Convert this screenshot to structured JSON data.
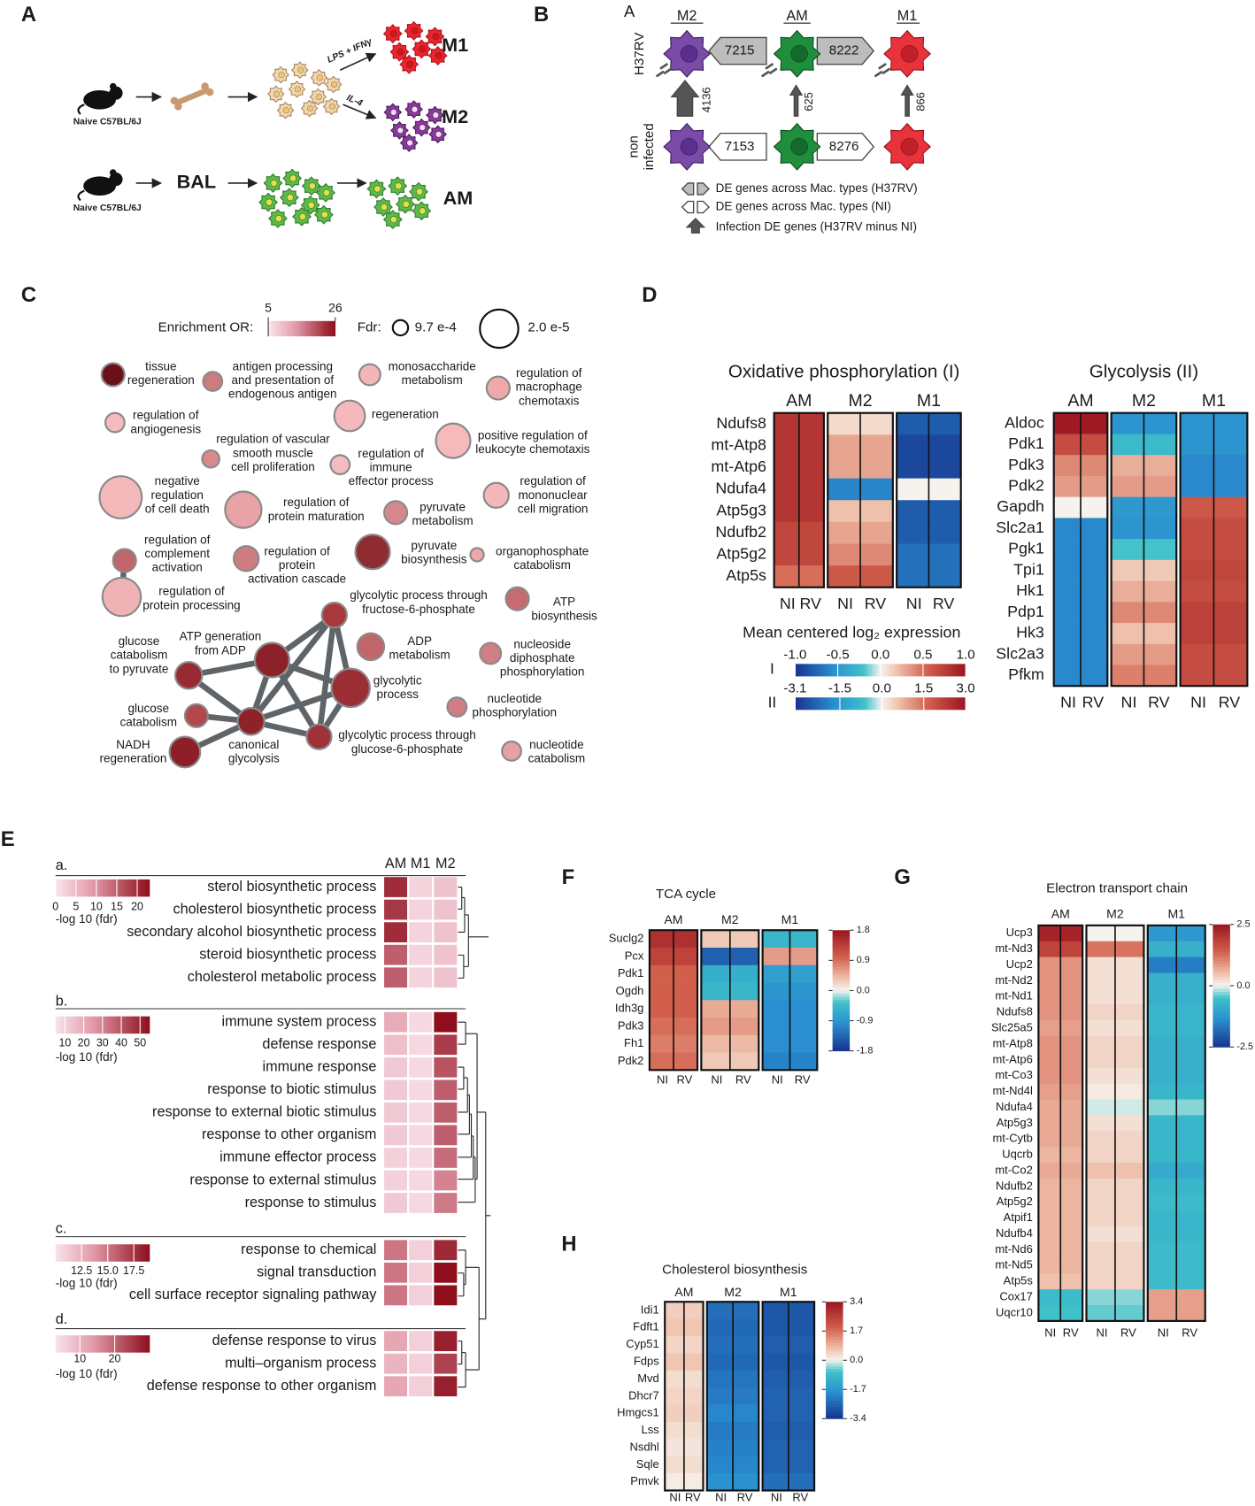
{
  "letters": [
    "A",
    "B",
    "C",
    "D",
    "E",
    "F",
    "G",
    "H"
  ],
  "panel_a": {
    "mouse_label": "Naive C57BL/6J",
    "stim_m1": "LPS + IFNγ",
    "stim_m2": "IL-4",
    "m1": "M1",
    "m2": "M2",
    "bal": "BAL",
    "am": "AM"
  },
  "panel_b": {
    "sub_label": "A",
    "columns": [
      "M2",
      "AM",
      "M1"
    ],
    "rows": [
      [
        "H37RV"
      ],
      [
        "non",
        "infected"
      ]
    ],
    "across_h37rv": [
      7215,
      8222
    ],
    "across_ni": [
      7153,
      8276
    ],
    "infection": [
      4136,
      625,
      866
    ],
    "legend": [
      "DE genes across Mac. types (H37RV)",
      "DE genes across Mac. types (NI)",
      "Infection DE genes (H37RV minus NI)"
    ]
  },
  "panel_c": {
    "or_label": "Enrichment OR:",
    "or_lim": [
      5,
      26
    ],
    "or_ticks": [
      5,
      26
    ],
    "fdr_label": "Fdr:",
    "fdr_small": "9.7 e-4",
    "fdr_large": "2.0 e-5",
    "nodes": [
      {
        "label": [
          "tissue",
          "regeneration"
        ],
        "color": "#6b0f18"
      },
      {
        "label": [
          "antigen processing",
          "and presentation of",
          "endogenous antigen"
        ],
        "color": "#cc7b80"
      },
      {
        "label": [
          "monosaccharide",
          "metabolism"
        ],
        "color": "#f3b6b8"
      },
      {
        "label": [
          "regulation of",
          "macrophage",
          "chemotaxis"
        ],
        "color": "#efa9ab"
      },
      {
        "label": [
          "regulation of",
          "angiogenesis"
        ],
        "color": "#f4bcbe"
      },
      {
        "label": [
          "regeneration"
        ],
        "color": "#f5b9bb"
      },
      {
        "label": [
          "regulation of vascular",
          "smooth muscle",
          "cell proliferation"
        ],
        "color": "#d8898d"
      },
      {
        "label": [
          "regulation of",
          "immune",
          "effector process"
        ],
        "color": "#f4bcbe"
      },
      {
        "label": [
          "positive regulation of",
          "leukocyte chemotaxis"
        ],
        "color": "#f6babc"
      },
      {
        "label": [
          "negative",
          "regulation",
          "of cell death"
        ],
        "color": "#f6b9bb"
      },
      {
        "label": [
          "regulation of",
          "protein maturation"
        ],
        "color": "#e9a2a5"
      },
      {
        "label": [
          "pyruvate",
          "metabolism"
        ],
        "color": "#d6878b"
      },
      {
        "label": [
          "regulation of",
          "mononuclear",
          "cell migration"
        ],
        "color": "#f4b8ba"
      },
      {
        "label": [
          "regulation of",
          "complement",
          "activation"
        ],
        "color": "#c0666b"
      },
      {
        "label": [
          "regulation of",
          "protein",
          "activation cascade"
        ],
        "color": "#cf7c80"
      },
      {
        "label": [
          "pyruvate",
          "biosynthesis"
        ],
        "color": "#8f2c32"
      },
      {
        "label": [
          "organophosphate",
          "catabolism"
        ],
        "color": "#f0a6a8"
      },
      {
        "label": [
          "regulation of",
          "protein processing"
        ],
        "color": "#f0b3b5"
      },
      {
        "label": [
          "glycolytic process through",
          "fructose-6-phosphate"
        ],
        "color": "#a9383e"
      },
      {
        "label": [
          "ATP",
          "biosynthesis"
        ],
        "color": "#c46c71"
      },
      {
        "label": [
          "glucose",
          "catabolism",
          "to pyruvate"
        ],
        "color": "#9a2a31"
      },
      {
        "label": [
          "ATP generation",
          "from ADP"
        ],
        "color": "#8d2129"
      },
      {
        "label": [
          "ADP",
          "metabolism"
        ],
        "color": "#c1676c"
      },
      {
        "label": [
          "nucleoside",
          "diphosphate",
          "phosphorylation"
        ],
        "color": "#d17f84"
      },
      {
        "label": [
          "glycolytic",
          "process"
        ],
        "color": "#9b2d34"
      },
      {
        "label": [
          "glucose",
          "catabolism"
        ],
        "color": "#b0484e"
      },
      {
        "label": [
          "nucleotide",
          "phosphorylation"
        ],
        "color": "#d07e83"
      },
      {
        "label": [
          "canonical",
          "glycolysis"
        ],
        "color": "#8f2229"
      },
      {
        "label": [
          "glycolytic process through",
          "glucose-6-phosphate"
        ],
        "color": "#9f3239"
      },
      {
        "label": [
          "NADH",
          "regeneration"
        ],
        "color": "#8e1e27"
      },
      {
        "label": [
          "nucleotide",
          "catabolism"
        ],
        "color": "#e5a1a4"
      }
    ]
  },
  "panel_d": {
    "legend_title": "Mean centered log₂ expression",
    "scales": [
      {
        "name": "I",
        "lim": [
          -1,
          1
        ],
        "ticks": [
          {
            "value": -1,
            "label": "-1.0"
          },
          -0.5,
          {
            "value": 0,
            "label": "0.0"
          },
          0.5,
          {
            "value": 1,
            "label": "1.0"
          }
        ]
      },
      {
        "name": "II",
        "lim": [
          -3.1,
          3
        ],
        "ticks": [
          -3.1,
          -1.5,
          {
            "value": 0,
            "label": "0.0"
          },
          1.5,
          {
            "value": 3,
            "label": "3.0"
          }
        ]
      }
    ],
    "heatmaps": [
      {
        "title": "Oxidative phosphorylation (I)",
        "groups": [
          "AM",
          "M2",
          "M1"
        ],
        "columns": [
          "NI",
          "RV"
        ],
        "genes": [
          "Ndufs8",
          "mt-Atp8",
          "mt-Atp6",
          "Ndufa4",
          "Atp5g3",
          "Ndufb2",
          "Atp5g2",
          "Atp5s"
        ],
        "values": [
          [
            0.8,
            0.1,
            -0.8
          ],
          [
            0.8,
            0.3,
            -0.9
          ],
          [
            0.8,
            0.3,
            -0.9
          ],
          [
            0.8,
            -0.6,
            0.0
          ],
          [
            0.8,
            0.2,
            -0.8
          ],
          [
            0.7,
            0.3,
            -0.8
          ],
          [
            0.7,
            0.4,
            -0.7
          ],
          [
            0.5,
            0.6,
            -0.7
          ]
        ]
      },
      {
        "title": "Glycolysis (II)",
        "groups": [
          "AM",
          "M2",
          "M1"
        ],
        "columns": [
          "NI",
          "RV"
        ],
        "genes": [
          "Aldoc",
          "Pdk1",
          "Pdk3",
          "Pdk2",
          "Gapdh",
          "Slc2a1",
          "Pgk1",
          "Tpi1",
          "Hk1",
          "Pdp1",
          "Hk3",
          "Slc2a3",
          "Pfkm"
        ],
        "values": [
          [
            2.9,
            -1.6,
            -1.6
          ],
          [
            2.0,
            -0.8,
            -1.6
          ],
          [
            1.2,
            0.8,
            -1.8
          ],
          [
            1.0,
            1.0,
            -1.8
          ],
          [
            0.0,
            -1.5,
            1.8
          ],
          [
            -1.8,
            -1.6,
            2.0
          ],
          [
            -1.8,
            -0.6,
            2.0
          ],
          [
            -1.8,
            0.5,
            2.1
          ],
          [
            -1.8,
            0.8,
            2.0
          ],
          [
            -1.8,
            1.2,
            2.2
          ],
          [
            -1.8,
            0.6,
            2.2
          ],
          [
            -1.8,
            1.0,
            2.0
          ],
          [
            -1.8,
            1.3,
            2.0
          ]
        ]
      }
    ]
  },
  "panel_e": {
    "columns": [
      "AM",
      "M1",
      "M2"
    ],
    "sections": [
      {
        "letter": "a.",
        "legend_label": "-log 10 (fdr)",
        "lim": [
          0,
          23
        ],
        "ticks": [
          0,
          5,
          10,
          15,
          20
        ],
        "terms": [
          "sterol biosynthetic process",
          "cholesterol biosynthetic process",
          "secondary alcohol biosynthetic process",
          "steroid biosynthetic process",
          "cholesterol metabolic process"
        ],
        "values": [
          [
            20,
            2,
            4
          ],
          [
            19,
            2,
            4
          ],
          [
            20,
            2,
            4
          ],
          [
            15,
            2,
            4
          ],
          [
            15,
            2,
            4
          ]
        ]
      },
      {
        "letter": "b.",
        "legend_label": "-log 10 (fdr)",
        "lim": [
          5,
          55
        ],
        "ticks": [
          10,
          20,
          30,
          40,
          50
        ],
        "terms": [
          "immune system process",
          "defense response",
          "immune response",
          "response to biotic stimulus",
          "response to external biotic stimulus",
          "response to other organism",
          "immune effector process",
          "response to external stimulus",
          "response to stimulus"
        ],
        "values": [
          [
            20,
            8,
            55
          ],
          [
            15,
            8,
            45
          ],
          [
            12,
            8,
            40
          ],
          [
            12,
            8,
            38
          ],
          [
            12,
            8,
            38
          ],
          [
            12,
            8,
            38
          ],
          [
            10,
            8,
            35
          ],
          [
            10,
            8,
            30
          ],
          [
            12,
            8,
            32
          ]
        ]
      },
      {
        "letter": "c.",
        "legend_label": "-log 10 (fdr)",
        "lim": [
          10,
          19
        ],
        "ticks": [
          12.5,
          {
            "value": 15,
            "label": "15.0"
          },
          17.5
        ],
        "terms": [
          "response to chemical",
          "signal transduction",
          "cell surface receptor signaling pathway"
        ],
        "values": [
          [
            15,
            11,
            18
          ],
          [
            15,
            11,
            19
          ],
          [
            15,
            11,
            19
          ]
        ]
      },
      {
        "letter": "d.",
        "legend_label": "-log 10 (fdr)",
        "lim": [
          3,
          30
        ],
        "ticks": [
          10,
          20
        ],
        "terms": [
          "defense response to virus",
          "multi–organism process",
          "defense response to other organism"
        ],
        "values": [
          [
            12,
            6,
            28
          ],
          [
            10,
            6,
            24
          ],
          [
            12,
            6,
            28
          ]
        ]
      }
    ]
  },
  "panel_f": {
    "title": "TCA cycle",
    "groups": [
      "AM",
      "M2",
      "M1"
    ],
    "columns": [
      "NI",
      "RV"
    ],
    "genes": [
      "Suclg2",
      "Pcx",
      "Pdk1",
      "Ogdh",
      "Idh3g",
      "Pdk3",
      "Fh1",
      "Pdk2"
    ],
    "values": [
      [
        1.5,
        0.3,
        -0.5
      ],
      [
        1.3,
        -1.4,
        0.6
      ],
      [
        1.0,
        -0.6,
        -0.8
      ],
      [
        1.0,
        -0.5,
        -0.9
      ],
      [
        1.0,
        0.5,
        -1.0
      ],
      [
        0.9,
        0.6,
        -1.0
      ],
      [
        0.8,
        0.4,
        -1.0
      ],
      [
        0.9,
        0.3,
        -1.1
      ]
    ],
    "lim": [
      -1.8,
      1.8
    ],
    "ticks": [
      1.8,
      0.9,
      {
        "value": 0,
        "label": "0.0"
      },
      -0.9,
      -1.8
    ]
  },
  "panel_g": {
    "title": "Electron transport chain",
    "groups": [
      "AM",
      "M2",
      "M1"
    ],
    "columns": [
      "NI",
      "RV"
    ],
    "genes": [
      "Ucp3",
      "mt-Nd3",
      "Ucp2",
      "mt-Nd2",
      "mt-Nd1",
      "Ndufs8",
      "Slc25a5",
      "mt-Atp8",
      "mt-Atp6",
      "mt-Co3",
      "mt-Nd4l",
      "Ndufa4",
      "Atp5g3",
      "mt-Cytb",
      "Uqcrb",
      "mt-Co2",
      "Ndufb2",
      "Atp5g2",
      "Atpif1",
      "Ndufb4",
      "mt-Nd6",
      "mt-Nd5",
      "Atp5s",
      "Cox17",
      "Uqcr10"
    ],
    "values": [
      [
        2.3,
        0.0,
        -1.2
      ],
      [
        1.8,
        1.2,
        -0.8
      ],
      [
        0.9,
        0.2,
        -1.6
      ],
      [
        0.9,
        0.2,
        -0.8
      ],
      [
        0.9,
        0.2,
        -0.8
      ],
      [
        0.9,
        0.3,
        -0.7
      ],
      [
        0.8,
        0.2,
        -0.7
      ],
      [
        0.9,
        0.3,
        -0.8
      ],
      [
        0.9,
        0.3,
        -0.8
      ],
      [
        0.9,
        0.2,
        -0.8
      ],
      [
        0.8,
        0.1,
        -0.7
      ],
      [
        0.7,
        -0.1,
        -0.3
      ],
      [
        0.7,
        0.2,
        -0.7
      ],
      [
        0.7,
        0.3,
        -0.7
      ],
      [
        0.6,
        0.3,
        -0.7
      ],
      [
        0.7,
        0.5,
        -0.9
      ],
      [
        0.6,
        0.3,
        -0.7
      ],
      [
        0.6,
        0.3,
        -0.6
      ],
      [
        0.6,
        0.3,
        -0.7
      ],
      [
        0.6,
        0.2,
        -0.7
      ],
      [
        0.6,
        0.3,
        -0.6
      ],
      [
        0.6,
        0.3,
        -0.6
      ],
      [
        0.5,
        0.3,
        -0.6
      ],
      [
        -0.6,
        -0.3,
        0.8
      ],
      [
        -0.5,
        -0.4,
        0.8
      ]
    ],
    "lim": [
      -2.5,
      2.5
    ],
    "ticks": [
      2.5,
      {
        "value": 0,
        "label": "0.0"
      },
      -2.5
    ]
  },
  "panel_h": {
    "title": "Cholesterol biosynthesis",
    "groups": [
      "AM",
      "M2",
      "M1"
    ],
    "columns": [
      "NI",
      "RV"
    ],
    "genes": [
      "Idi1",
      "Fdft1",
      "Cyp51",
      "Fdps",
      "Mvd",
      "Dhcr7",
      "Hmgcs1",
      "Lss",
      "Nsdhl",
      "Sqle",
      "Pmvk"
    ],
    "values": [
      [
        0.5,
        -2.4,
        -2.8
      ],
      [
        0.6,
        -2.5,
        -2.8
      ],
      [
        0.4,
        -2.4,
        -2.7
      ],
      [
        0.6,
        -2.5,
        -2.8
      ],
      [
        0.3,
        -2.3,
        -2.7
      ],
      [
        0.4,
        -2.2,
        -2.6
      ],
      [
        0.5,
        -2.0,
        -2.6
      ],
      [
        0.3,
        -2.2,
        -2.7
      ],
      [
        0.2,
        -2.1,
        -2.6
      ],
      [
        0.3,
        -2.0,
        -2.6
      ],
      [
        0.1,
        -1.8,
        -2.4
      ]
    ],
    "lim": [
      -3.4,
      3.4
    ],
    "ticks": [
      3.4,
      1.7,
      {
        "value": 0,
        "label": "0.0"
      },
      -1.7,
      -3.4
    ]
  }
}
